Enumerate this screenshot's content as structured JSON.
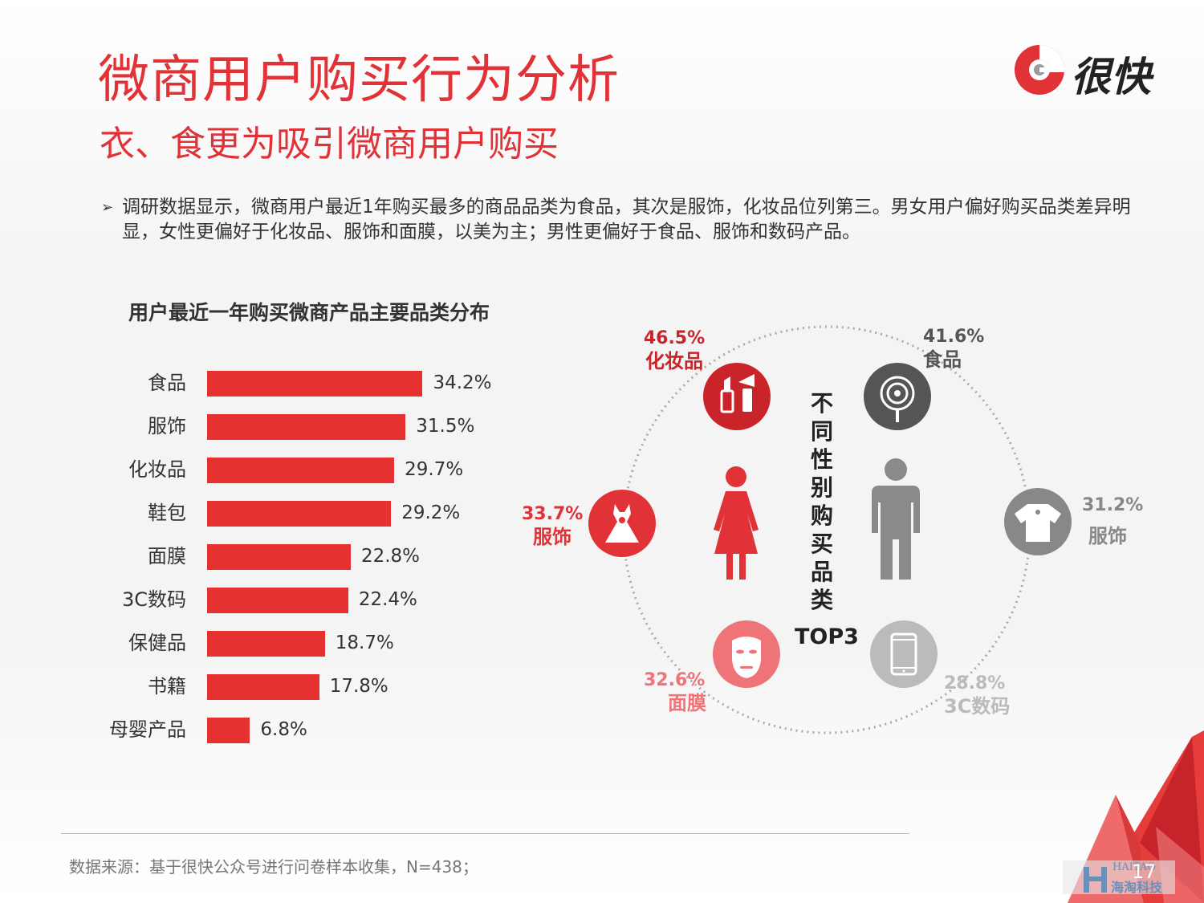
{
  "header": {
    "title": "微商用户购买行为分析",
    "subtitle": "衣、食更为吸引微商用户购买",
    "logo_text": "很快"
  },
  "bullet": {
    "arrow": "➢",
    "text": "调研数据显示，微商用户最近1年购买最多的商品品类为食品，其次是服饰，化妆品位列第三。男女用户偏好购买品类差异明显，女性更偏好于化妆品、服饰和面膜，以美为主；男性更偏好于食品、服饰和数码产品。"
  },
  "chart_data": {
    "type": "bar",
    "orientation": "horizontal",
    "title": "用户最近一年购买微商产品主要品类分布",
    "categories": [
      "食品",
      "服饰",
      "化妆品",
      "鞋包",
      "面膜",
      "3C数码",
      "保健品",
      "书籍",
      "母婴产品"
    ],
    "values": [
      34.2,
      31.5,
      29.7,
      29.2,
      22.8,
      22.4,
      18.7,
      17.8,
      6.8
    ],
    "value_labels": [
      "34.2%",
      "31.5%",
      "29.7%",
      "29.2%",
      "22.8%",
      "22.4%",
      "18.7%",
      "17.8%",
      "6.8%"
    ],
    "bar_color": "#e5312f"
  },
  "gender_top3": {
    "title_vertical": "不同性别购买品类",
    "top3_label": "TOP3",
    "female": [
      {
        "pct": "46.5%",
        "label": "化妆品",
        "icon": "cosmetics-icon",
        "color": "#c8242a"
      },
      {
        "pct": "33.7%",
        "label": "服饰",
        "icon": "dress-icon",
        "color": "#e03237"
      },
      {
        "pct": "32.6%",
        "label": "面膜",
        "icon": "face-mask-icon",
        "color": "#ef7478"
      }
    ],
    "male": [
      {
        "pct": "41.6%",
        "label": "食品",
        "icon": "lollipop-icon",
        "color": "#555555"
      },
      {
        "pct": "31.2%",
        "label": "服饰",
        "icon": "shirt-icon",
        "color": "#888888"
      },
      {
        "pct": "28.8%",
        "label": "3C数码",
        "icon": "phone-icon",
        "color": "#bbbbbb"
      }
    ]
  },
  "footer": {
    "source": "数据来源：基于很快公众号进行问卷样本收集，N=438；",
    "page_number": "17",
    "watermark_top": "HAITAO",
    "watermark_text": "海淘科技"
  }
}
